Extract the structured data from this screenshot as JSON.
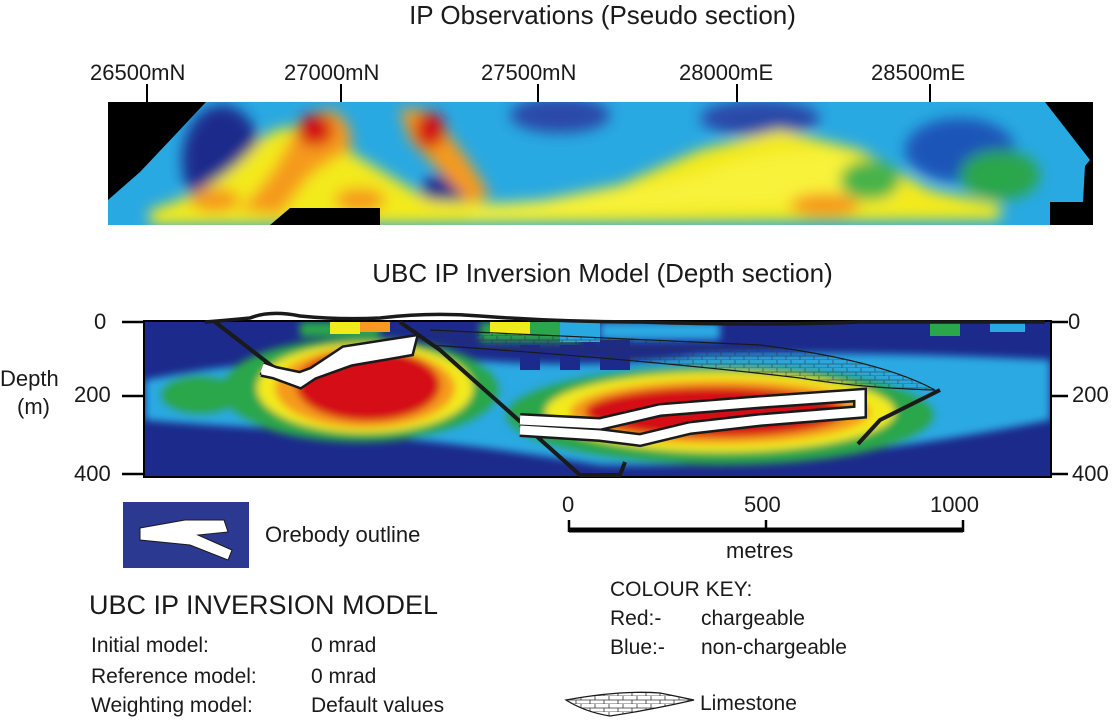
{
  "titles": {
    "pseudo": "IP Observations (Pseudo section)",
    "depth": "UBC IP Inversion Model (Depth section)"
  },
  "pseudo_ticks": [
    "26500mN",
    "27000mN",
    "27500mN",
    "28000mE",
    "28500mE"
  ],
  "depth_axis": {
    "label_line1": "Depth",
    "label_line2": "(m)",
    "ticks": [
      "0",
      "200",
      "400"
    ]
  },
  "scale_bar": {
    "ticks": [
      "0",
      "500",
      "1000"
    ],
    "unit": "metres"
  },
  "legend": {
    "orebody": "Orebody outline",
    "limestone": "Limestone",
    "colour_key_title": "COLOUR KEY:",
    "red_label": "Red:-",
    "red_desc": "chargeable",
    "blue_label": "Blue:-",
    "blue_desc": "non-chargeable"
  },
  "model_params": {
    "heading": "UBC IP INVERSION MODEL",
    "rows": [
      {
        "label": "Initial model:",
        "value": "0 mrad"
      },
      {
        "label": "Reference model:",
        "value": "0 mrad"
      },
      {
        "label": "Weighting model:",
        "value": "Default values"
      }
    ]
  },
  "colors": {
    "high": "#d40f14",
    "mid_high": "#f2ee18",
    "mid": "#27a84a",
    "low_mid": "#1fb0e6",
    "low": "#1c2a8c",
    "mask": "#000000",
    "orebody_fill": "#ffffff",
    "legend_bg": "#2b3990"
  }
}
